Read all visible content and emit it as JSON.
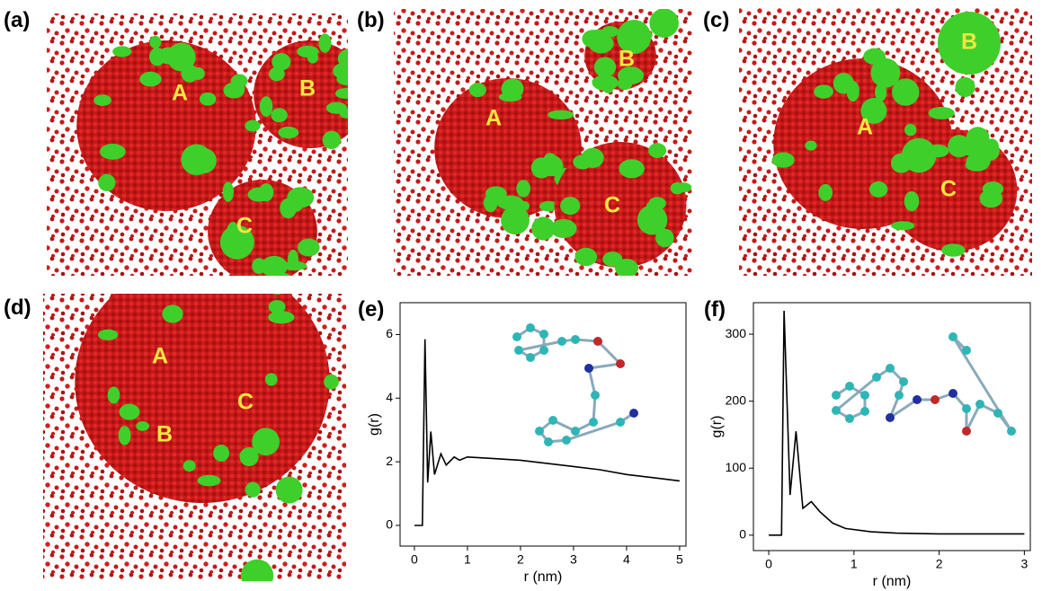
{
  "panels": [
    {
      "label": "(a)",
      "regions": [
        "A",
        "B",
        "C"
      ]
    },
    {
      "label": "(b)",
      "regions": [
        "A",
        "B",
        "C"
      ]
    },
    {
      "label": "(c)",
      "regions": [
        "A",
        "B",
        "C"
      ]
    },
    {
      "label": "(d)",
      "regions": [
        "A",
        "B",
        "C"
      ]
    }
  ],
  "chart_data": [
    {
      "type": "line",
      "label": "(e)",
      "x_label": "r (nm)",
      "y_label": "g(r)",
      "x": [
        0,
        0.15,
        0.2,
        0.25,
        0.31,
        0.38,
        0.5,
        0.6,
        0.75,
        0.85,
        1.0,
        1.5,
        2.0,
        2.5,
        3.0,
        3.5,
        4.0,
        4.5,
        5.0
      ],
      "series": [
        {
          "color": "#000000",
          "values": [
            0,
            0,
            5.85,
            1.35,
            2.95,
            1.6,
            2.25,
            1.9,
            2.15,
            2.05,
            2.15,
            2.1,
            2.05,
            1.95,
            1.85,
            1.75,
            1.6,
            1.5,
            1.4
          ]
        }
      ],
      "xlim": [
        -0.27,
        5.12
      ],
      "ylim": [
        -0.65,
        7.0
      ],
      "xticks": [
        0,
        1,
        2,
        3,
        4,
        5
      ],
      "yticks": [
        0,
        2,
        4,
        6
      ]
    },
    {
      "type": "line",
      "label": "(f)",
      "x_label": "r (nm)",
      "y_label": "g(r)",
      "x": [
        0,
        0.15,
        0.18,
        0.25,
        0.32,
        0.4,
        0.5,
        0.6,
        0.75,
        0.9,
        1.2,
        1.5,
        2.0,
        3.0
      ],
      "series": [
        {
          "color": "#000000",
          "values": [
            0,
            0,
            335,
            60,
            155,
            40,
            50,
            35,
            18,
            10,
            5,
            3,
            2,
            2
          ]
        }
      ],
      "xlim": [
        -0.18,
        3.07
      ],
      "ylim": [
        -23,
        347
      ],
      "xticks": [
        0,
        1,
        2,
        3
      ],
      "yticks": [
        0,
        100,
        200,
        300
      ]
    }
  ]
}
